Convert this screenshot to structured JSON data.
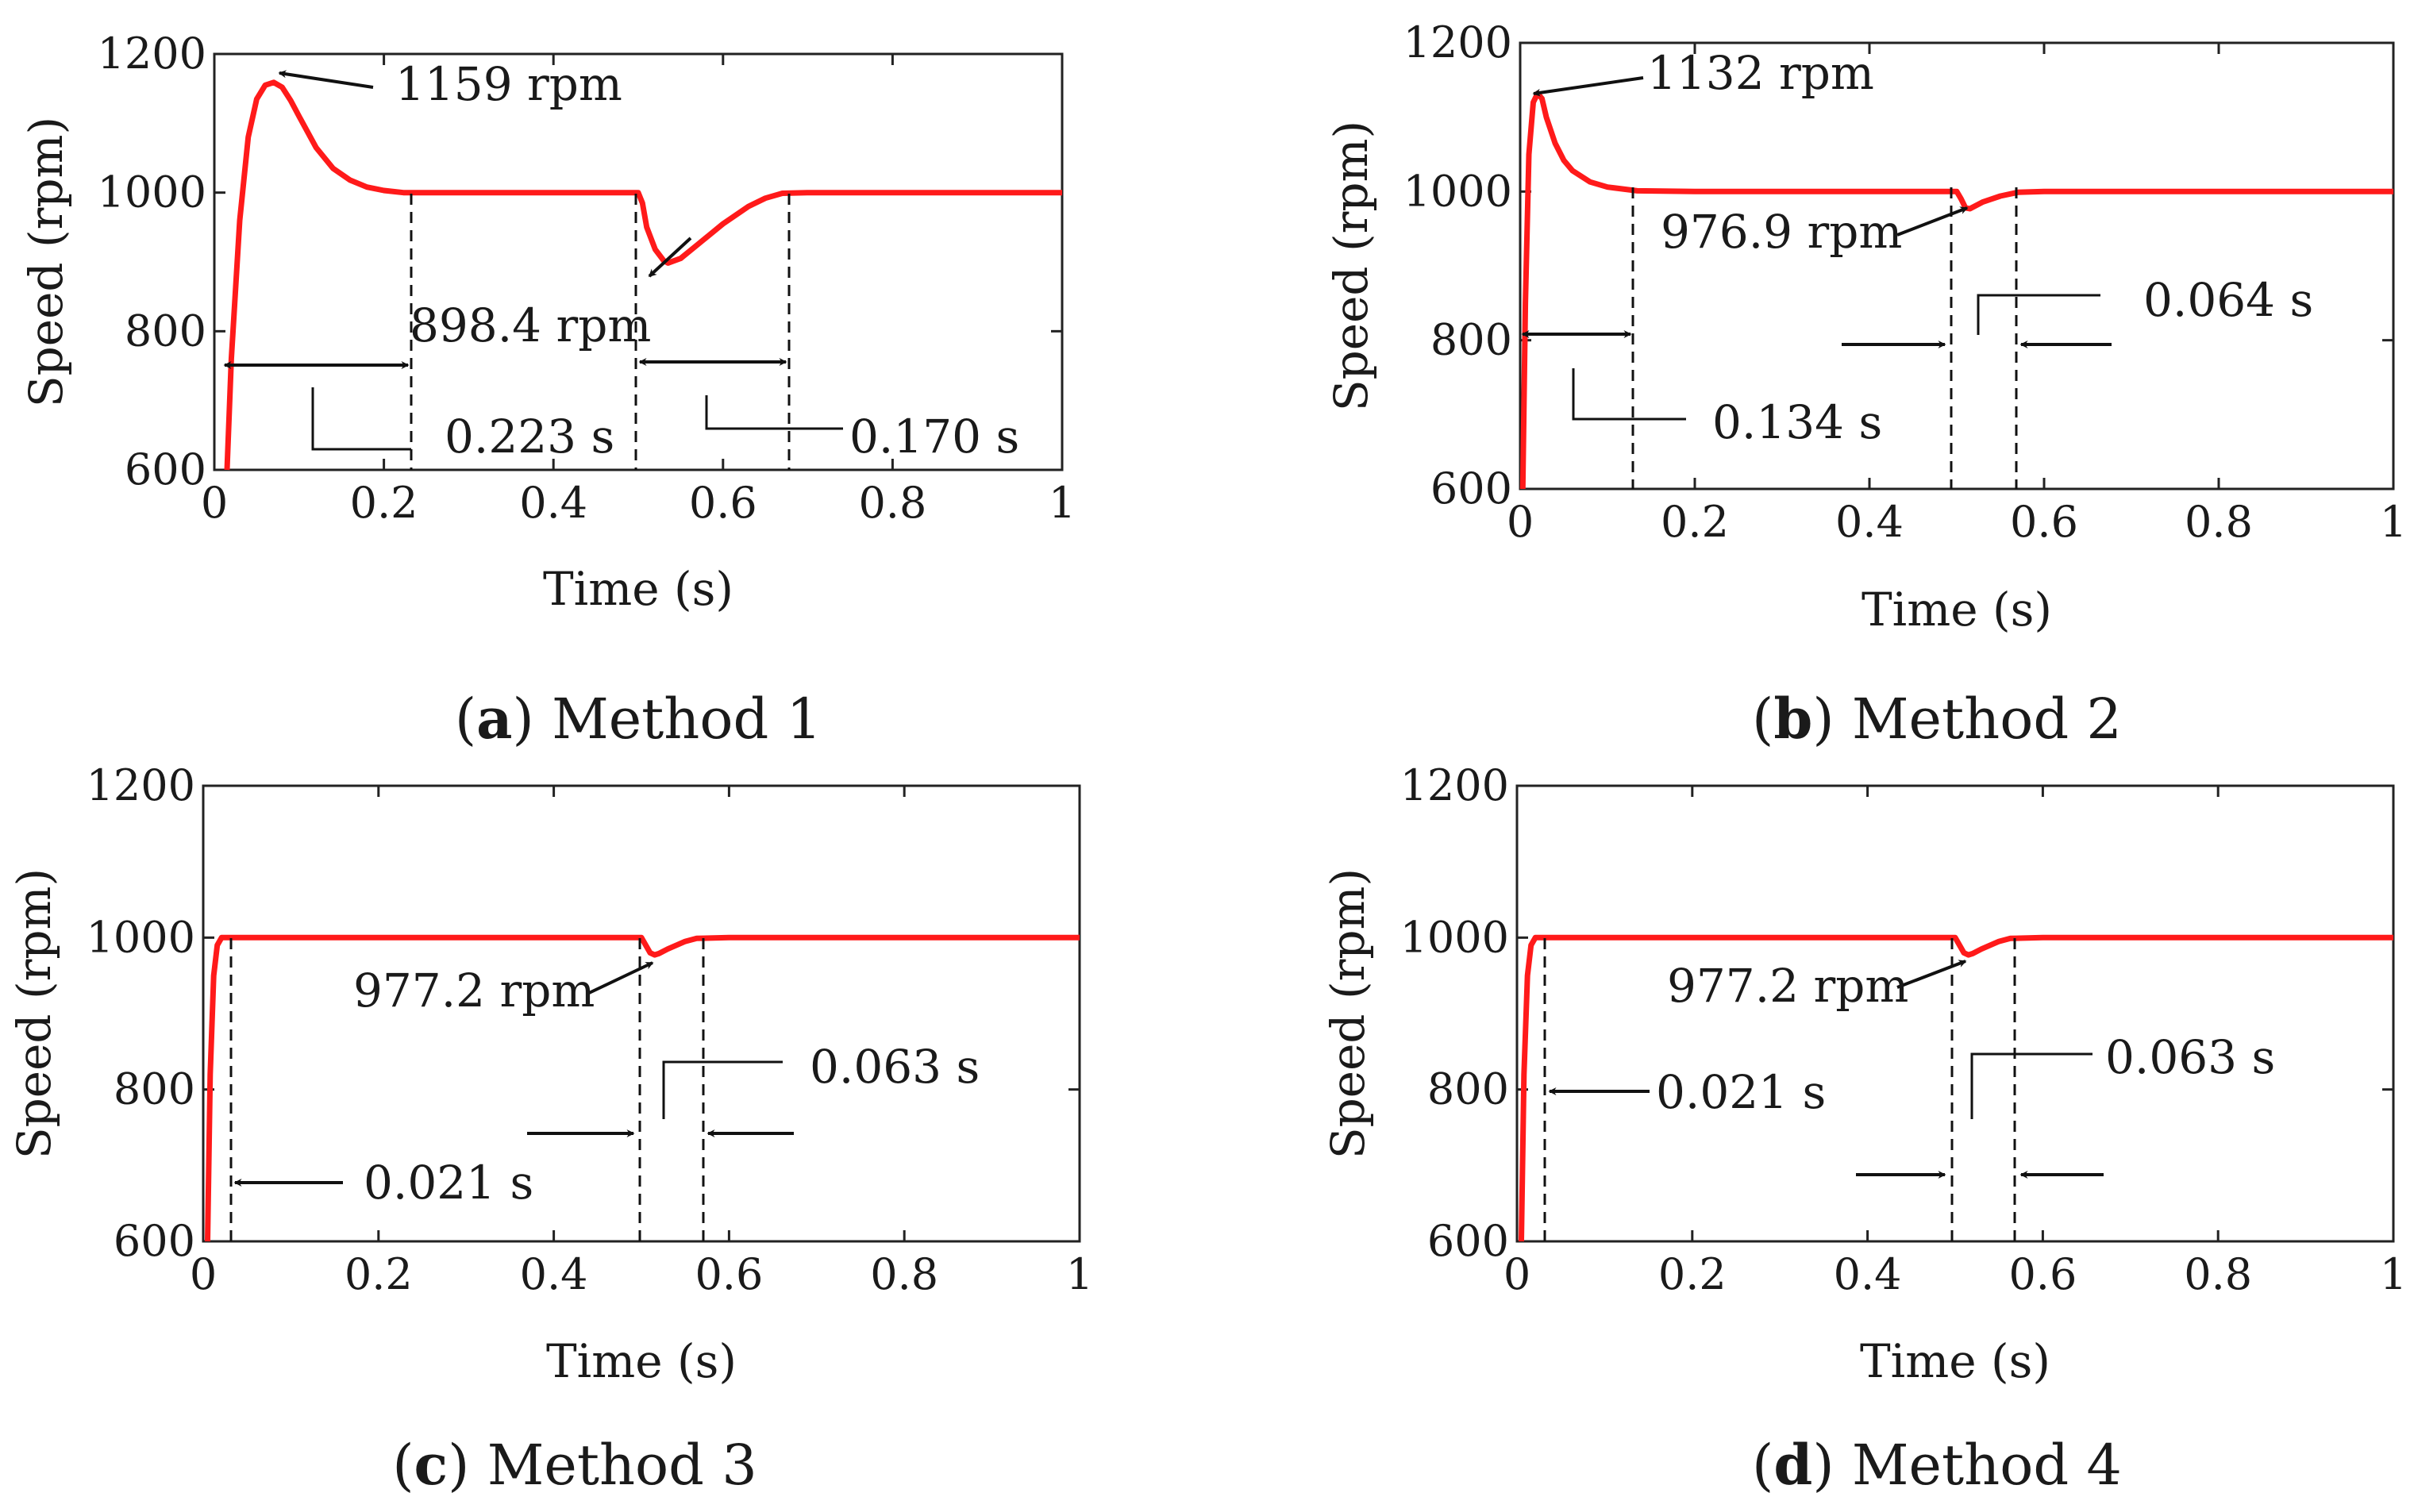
{
  "chart_data": [
    {
      "type": "line",
      "panel": "a",
      "caption_letter": "a",
      "caption_text": "Method 1",
      "xlabel": "Time (s)",
      "ylabel": "Speed (rpm)",
      "xlim": [
        0,
        1
      ],
      "ylim": [
        600,
        1200
      ],
      "xticks": [
        "0",
        "0.2",
        "0.4",
        "0.6",
        "0.8",
        "1"
      ],
      "yticks": [
        "600",
        "800",
        "1000",
        "1200"
      ],
      "series": [
        {
          "name": "speed",
          "color": "#ff1a1a",
          "x": [
            0.015,
            0.02,
            0.03,
            0.04,
            0.05,
            0.06,
            0.07,
            0.08,
            0.09,
            0.1,
            0.12,
            0.14,
            0.16,
            0.18,
            0.2,
            0.223,
            0.25,
            0.3,
            0.35,
            0.4,
            0.45,
            0.5,
            0.505,
            0.51,
            0.52,
            0.53,
            0.535,
            0.55,
            0.57,
            0.6,
            0.63,
            0.65,
            0.67,
            0.7,
            0.8,
            0.9,
            1.0
          ],
          "y": [
            600,
            760,
            960,
            1080,
            1135,
            1155,
            1159,
            1152,
            1133,
            1110,
            1065,
            1035,
            1018,
            1008,
            1003,
            1000,
            1000,
            1000,
            1000,
            1000,
            1000,
            1000,
            985,
            950,
            918,
            902,
            898.4,
            905,
            925,
            955,
            980,
            992,
            999,
            1000,
            1000,
            1000,
            1000
          ]
        }
      ],
      "annotations": {
        "peak": "1159 rpm",
        "dip": "898.4 rpm",
        "t1": "0.223 s",
        "t2": "0.170 s"
      }
    },
    {
      "type": "line",
      "panel": "b",
      "caption_letter": "b",
      "caption_text": "Method 2",
      "xlabel": "Time (s)",
      "ylabel": "Speed (rpm)",
      "xlim": [
        0,
        1
      ],
      "ylim": [
        600,
        1200
      ],
      "xticks": [
        "0",
        "0.2",
        "0.4",
        "0.6",
        "0.8",
        "1"
      ],
      "yticks": [
        "600",
        "800",
        "1000",
        "1200"
      ],
      "series": [
        {
          "name": "speed",
          "color": "#ff1a1a",
          "x": [
            0.003,
            0.006,
            0.01,
            0.015,
            0.02,
            0.025,
            0.03,
            0.04,
            0.05,
            0.06,
            0.08,
            0.1,
            0.134,
            0.2,
            0.3,
            0.4,
            0.5,
            0.505,
            0.51,
            0.515,
            0.52,
            0.53,
            0.55,
            0.57,
            0.6,
            0.7,
            0.8,
            0.9,
            1.0
          ],
          "y": [
            600,
            850,
            1050,
            1120,
            1132,
            1125,
            1100,
            1065,
            1042,
            1028,
            1013,
            1006,
            1001,
            1000,
            1000,
            1000,
            1000,
            990,
            978,
            976.9,
            980,
            986,
            994,
            999,
            1000,
            1000,
            1000,
            1000,
            1000
          ]
        }
      ],
      "annotations": {
        "peak": "1132 rpm",
        "dip": "976.9 rpm",
        "t1": "0.134 s",
        "t2": "0.064 s"
      }
    },
    {
      "type": "line",
      "panel": "c",
      "caption_letter": "c",
      "caption_text": "Method 3",
      "xlabel": "Time (s)",
      "ylabel": "Speed (rpm)",
      "xlim": [
        0,
        1
      ],
      "ylim": [
        600,
        1200
      ],
      "xticks": [
        "0",
        "0.2",
        "0.4",
        "0.6",
        "0.8",
        "1"
      ],
      "yticks": [
        "600",
        "800",
        "1000",
        "1200"
      ],
      "series": [
        {
          "name": "speed",
          "color": "#ff1a1a",
          "x": [
            0.005,
            0.008,
            0.012,
            0.016,
            0.021,
            0.03,
            0.1,
            0.2,
            0.3,
            0.4,
            0.5,
            0.505,
            0.51,
            0.515,
            0.52,
            0.53,
            0.55,
            0.563,
            0.6,
            0.7,
            0.8,
            0.9,
            1.0
          ],
          "y": [
            600,
            820,
            950,
            990,
            1000,
            1000,
            1000,
            1000,
            1000,
            1000,
            1000,
            990,
            980,
            977.2,
            979,
            985,
            995,
            999,
            1000,
            1000,
            1000,
            1000,
            1000
          ]
        }
      ],
      "annotations": {
        "dip": "977.2 rpm",
        "t1": "0.021 s",
        "t2": "0.063 s"
      }
    },
    {
      "type": "line",
      "panel": "d",
      "caption_letter": "d",
      "caption_text": "Method 4",
      "xlabel": "Time (s)",
      "ylabel": "Speed (rpm)",
      "xlim": [
        0,
        1
      ],
      "ylim": [
        600,
        1200
      ],
      "xticks": [
        "0",
        "0.2",
        "0.4",
        "0.6",
        "0.8",
        "1"
      ],
      "yticks": [
        "600",
        "800",
        "1000",
        "1200"
      ],
      "series": [
        {
          "name": "speed",
          "color": "#ff1a1a",
          "x": [
            0.005,
            0.008,
            0.012,
            0.016,
            0.021,
            0.03,
            0.1,
            0.2,
            0.3,
            0.4,
            0.5,
            0.505,
            0.51,
            0.515,
            0.52,
            0.53,
            0.55,
            0.563,
            0.6,
            0.7,
            0.8,
            0.9,
            1.0
          ],
          "y": [
            600,
            820,
            950,
            990,
            1000,
            1000,
            1000,
            1000,
            1000,
            1000,
            1000,
            990,
            980,
            977.2,
            979,
            985,
            995,
            999,
            1000,
            1000,
            1000,
            1000,
            1000
          ]
        }
      ],
      "annotations": {
        "dip": "977.2 rpm",
        "t1": "0.021 s",
        "t2": "0.063 s"
      }
    }
  ]
}
